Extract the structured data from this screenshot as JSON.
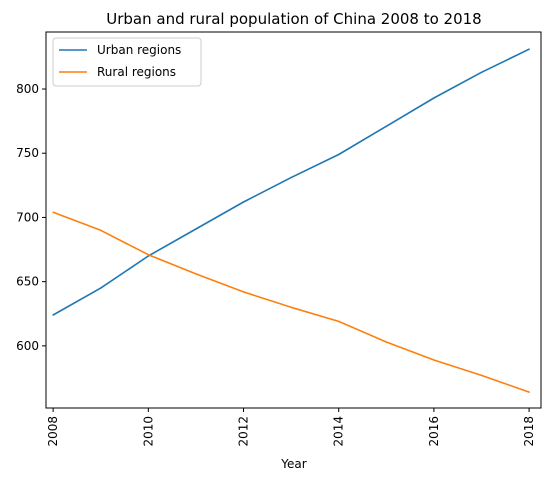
{
  "chart_data": {
    "type": "line",
    "title": "Urban and rural population of China 2008 to 2018",
    "xlabel": "Year",
    "ylabel": "",
    "x": [
      2008,
      2009,
      2010,
      2011,
      2012,
      2013,
      2014,
      2015,
      2016,
      2017,
      2018
    ],
    "series": [
      {
        "name": "Urban regions",
        "color": "#1f77b4",
        "values": [
          624,
          645,
          670,
          691,
          712,
          731,
          749,
          771,
          793,
          813,
          831
        ]
      },
      {
        "name": "Rural regions",
        "color": "#ff7f0e",
        "values": [
          704,
          690,
          671,
          656,
          642,
          630,
          619,
          603,
          589,
          577,
          564
        ]
      }
    ],
    "xlim": [
      2007.85,
      2018.25
    ],
    "ylim": [
      551.6,
      844.4
    ],
    "xticks": [
      "2008",
      "2010",
      "2012",
      "2014",
      "2016",
      "2018"
    ],
    "yticks": [
      "600",
      "650",
      "700",
      "750",
      "800"
    ],
    "legend_position": "upper-left",
    "grid": false
  }
}
